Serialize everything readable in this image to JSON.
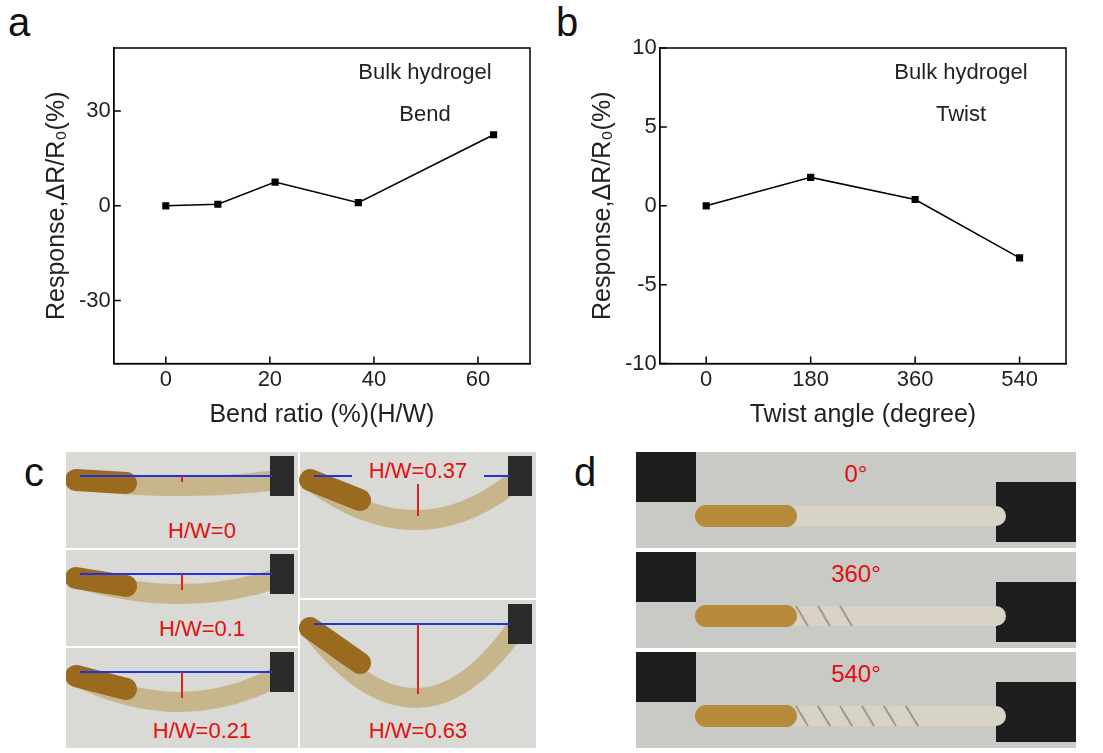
{
  "chart_data": [
    {
      "panel": "a",
      "type": "line",
      "annotations": [
        "Bulk hydrogel",
        "Bend"
      ],
      "x_label": "Bend ratio (%)(H/W)",
      "y_label": "Response,ΔR/R₀(%)",
      "x": [
        0,
        10,
        21,
        37,
        63
      ],
      "series": [
        {
          "name": "Bend",
          "color": "#000000",
          "marker": "square",
          "values": [
            0,
            0.5,
            7.5,
            1,
            22.5
          ]
        }
      ],
      "xlim": [
        -10,
        70
      ],
      "xticks": [
        0,
        20,
        40,
        60
      ],
      "ylim": [
        -50,
        50
      ],
      "yticks": [
        -30,
        0,
        30
      ],
      "grid": false
    },
    {
      "panel": "b",
      "type": "line",
      "annotations": [
        "Bulk hydrogel",
        "Twist"
      ],
      "x_label": "Twist angle (degree)",
      "y_label": "Response,ΔR/R₀(%)",
      "x": [
        0,
        180,
        360,
        540
      ],
      "series": [
        {
          "name": "Twist",
          "color": "#000000",
          "marker": "square",
          "values": [
            0,
            1.8,
            0.4,
            -3.3
          ]
        }
      ],
      "xlim": [
        -80,
        620
      ],
      "xticks": [
        0,
        180,
        360,
        540
      ],
      "ylim": [
        -10,
        10
      ],
      "yticks": [
        -10,
        -5,
        0,
        5,
        10
      ],
      "grid": false
    }
  ],
  "photos": [
    {
      "panel": "c",
      "labels": [
        "H/W=0",
        "H/W=0.1",
        "H/W=0.21",
        "H/W=0.37",
        "H/W=0.63"
      ]
    },
    {
      "panel": "d",
      "labels": [
        "0°",
        "360°",
        "540°"
      ]
    }
  ]
}
